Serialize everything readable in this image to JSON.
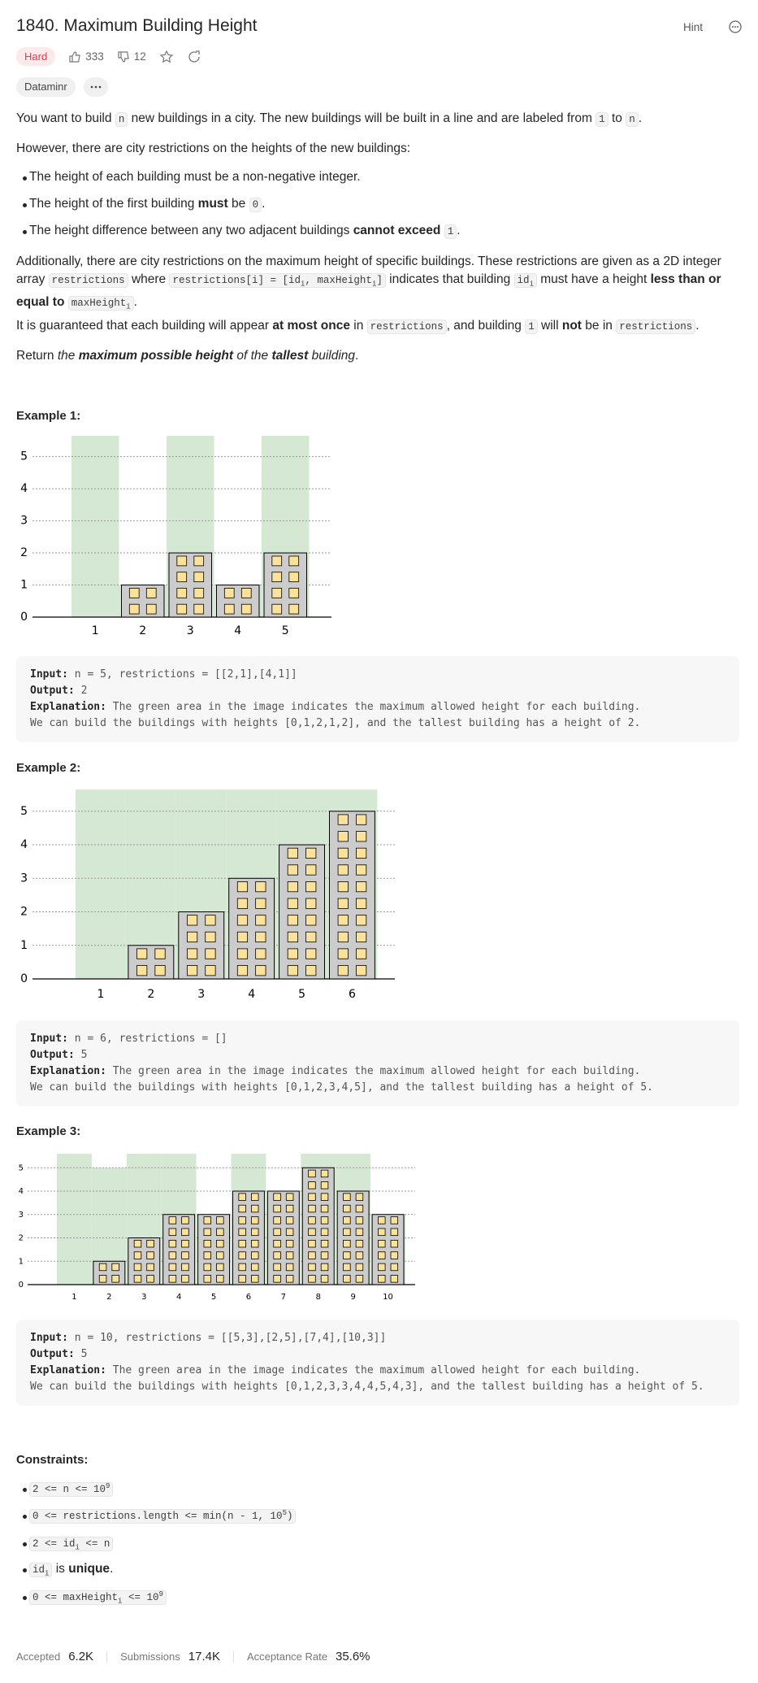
{
  "header": {
    "title": "1840. Maximum Building Height",
    "hint": "Hint",
    "difficulty": "Hard",
    "likes": "333",
    "dislikes": "12",
    "company": "Dataminr"
  },
  "description": {
    "p0": [
      "You want to build ",
      {
        "code": "n"
      },
      " new buildings in a city. The new buildings will be built in a line and are labeled from ",
      {
        "code": "1"
      },
      " to ",
      {
        "code": "n"
      },
      "."
    ],
    "p1": "However, there are city restrictions on the heights of the new buildings:",
    "bullets": [
      [
        "The height of each building must be a non-negative integer."
      ],
      [
        "The height of the first building ",
        {
          "b": "must"
        },
        " be ",
        {
          "code": "0"
        },
        "."
      ],
      [
        "The height difference between any two adjacent buildings ",
        {
          "b": "cannot exceed"
        },
        " ",
        {
          "code": "1"
        },
        "."
      ]
    ],
    "p2": [
      "Additionally, there are city restrictions on the maximum height of specific buildings. These restrictions are given as a 2D integer array ",
      {
        "code": "restrictions"
      },
      " where ",
      {
        "code": [
          "restrictions[i] = [id",
          {
            "sub": "i"
          },
          ", maxHeight",
          {
            "sub": "i"
          },
          "]"
        ]
      },
      " indicates that building ",
      {
        "code": [
          "id",
          {
            "sub": "i"
          }
        ]
      },
      " must have a height ",
      {
        "b": "less than or equal to"
      },
      " ",
      {
        "code": [
          "maxHeight",
          {
            "sub": "i"
          }
        ]
      },
      "."
    ],
    "p3": [
      "It is guaranteed that each building will appear ",
      {
        "b": "at most once"
      },
      " in ",
      {
        "code": "restrictions"
      },
      ", and building ",
      {
        "code": "1"
      },
      " will ",
      {
        "b": "not"
      },
      " be in ",
      {
        "code": "restrictions"
      },
      "."
    ],
    "p4": [
      "Return ",
      {
        "i": [
          "the ",
          {
            "b": "maximum possible height"
          },
          " of the ",
          {
            "b": "tallest"
          },
          " building"
        ]
      },
      "."
    ]
  },
  "examples": [
    {
      "title": "Example 1:",
      "input_label": "Input:",
      "input": "n = 5, restrictions = [[2,1],[4,1]]",
      "output_label": "Output:",
      "output": "2",
      "explanation_label": "Explanation:",
      "explanation": "The green area in the image indicates the maximum allowed height for each building.\nWe can build the buildings with heights [0,1,2,1,2], and the tallest building has a height of 2.",
      "figure": {
        "type": "bar",
        "categories": [
          "1",
          "2",
          "3",
          "4",
          "5"
        ],
        "values": [
          0,
          1,
          2,
          1,
          2
        ],
        "limits": [
          5.65,
          1,
          5.65,
          1,
          5.65
        ],
        "ylim": [
          0,
          5.65
        ],
        "yticks": [
          0,
          1,
          2,
          3,
          4,
          5
        ],
        "grid": true,
        "bar_color": "#cccccc",
        "limit_color": "#d5e8d4",
        "window_color": "#fbe29a"
      }
    },
    {
      "title": "Example 2:",
      "input_label": "Input:",
      "input": "n = 6, restrictions = []",
      "output_label": "Output:",
      "output": "5",
      "explanation_label": "Explanation:",
      "explanation": "The green area in the image indicates the maximum allowed height for each building.\nWe can build the buildings with heights [0,1,2,3,4,5], and the tallest building has a height of 5.",
      "figure": {
        "type": "bar",
        "categories": [
          "1",
          "2",
          "3",
          "4",
          "5",
          "6"
        ],
        "values": [
          0,
          1,
          2,
          3,
          4,
          5
        ],
        "limits": [
          5.65,
          5.65,
          5.65,
          5.65,
          5.65,
          5.65
        ],
        "ylim": [
          0,
          5.65
        ],
        "yticks": [
          0,
          1,
          2,
          3,
          4,
          5
        ],
        "grid": true,
        "bar_color": "#cccccc",
        "limit_color": "#d5e8d4",
        "window_color": "#fbe29a"
      }
    },
    {
      "title": "Example 3:",
      "input_label": "Input:",
      "input": "n = 10, restrictions = [[5,3],[2,5],[7,4],[10,3]]",
      "output_label": "Output:",
      "output": "5",
      "explanation_label": "Explanation:",
      "explanation": "The green area in the image indicates the maximum allowed height for each building.\nWe can build the buildings with heights [0,1,2,3,3,4,4,5,4,3], and the tallest building has a height of 5.",
      "figure": {
        "type": "bar",
        "categories": [
          "1",
          "2",
          "3",
          "4",
          "5",
          "6",
          "7",
          "8",
          "9",
          "10"
        ],
        "values": [
          0,
          1,
          2,
          3,
          3,
          4,
          4,
          5,
          4,
          3
        ],
        "limits": [
          5.6,
          5,
          5.6,
          5.6,
          3,
          5.6,
          4,
          5.6,
          5.6,
          3
        ],
        "ylim": [
          0,
          5.6
        ],
        "yticks": [
          0,
          1,
          2,
          3,
          4,
          5
        ],
        "grid": true,
        "bar_color": "#cccccc",
        "limit_color": "#d5e8d4",
        "window_color": "#fbe29a"
      }
    }
  ],
  "constraints": {
    "title": "Constraints:",
    "items": [
      [
        {
          "code": [
            "2 <= n <= 10",
            {
              "sup": "9"
            }
          ]
        }
      ],
      [
        {
          "code": [
            "0 <= restrictions.length <= min(n - 1, 10",
            {
              "sup": "5"
            },
            ")"
          ]
        }
      ],
      [
        {
          "code": [
            "2 <= id",
            {
              "sub": "i"
            },
            " <= n"
          ]
        }
      ],
      [
        {
          "code": [
            "id",
            {
              "sub": "i"
            }
          ]
        },
        " is ",
        {
          "b": "unique"
        },
        "."
      ],
      [
        {
          "code": [
            "0 <= maxHeight",
            {
              "sub": "i"
            },
            " <= 10",
            {
              "sup": "9"
            }
          ]
        }
      ]
    ]
  },
  "footer": {
    "accepted_label": "Accepted",
    "accepted": "6.2K",
    "submissions_label": "Submissions",
    "submissions": "17.4K",
    "rate_label": "Acceptance Rate",
    "rate": "35.6%"
  }
}
